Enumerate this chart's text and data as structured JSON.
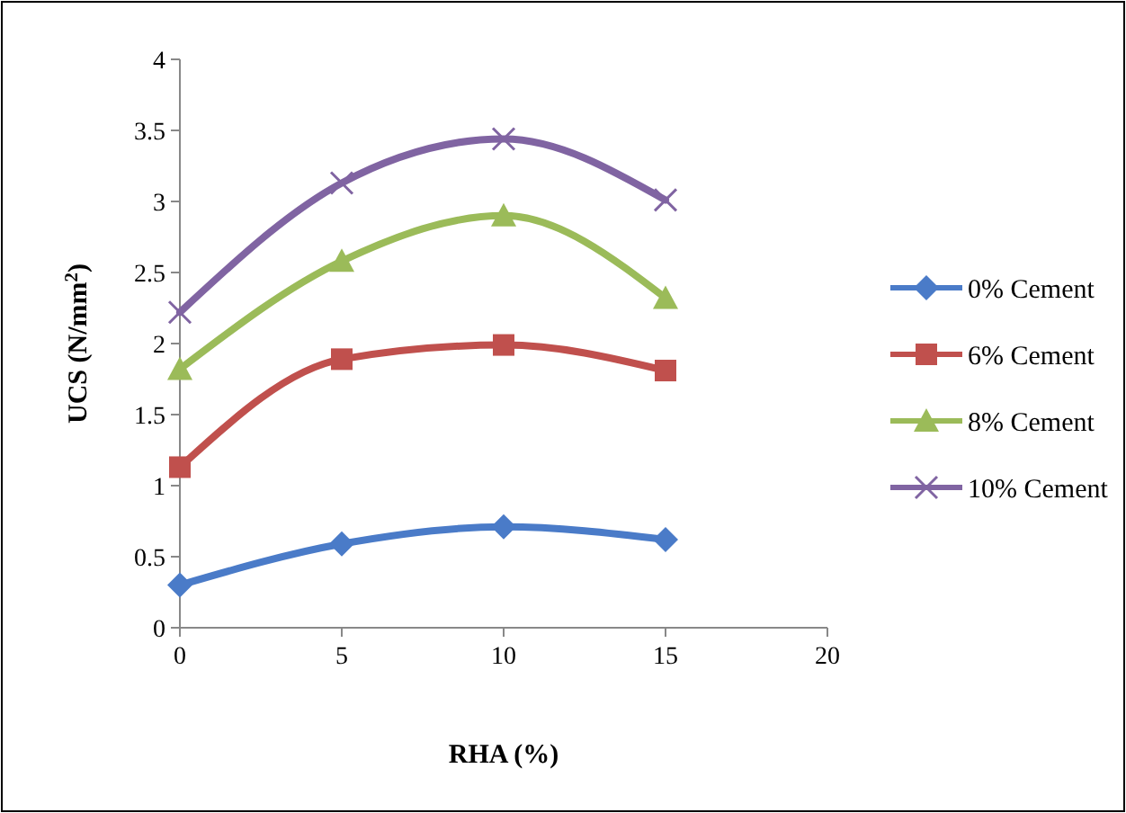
{
  "chart_data": {
    "type": "line",
    "xlabel": "RHA (%)",
    "ylabel": "UCS (N/mm$^{2}$)",
    "x": [
      0,
      5,
      10,
      15
    ],
    "xlim": [
      0,
      20
    ],
    "xticks": [
      0,
      5,
      10,
      15,
      20
    ],
    "ylim": [
      0,
      4
    ],
    "yticks": [
      0,
      0.5,
      1,
      1.5,
      2,
      2.5,
      3,
      3.5,
      4
    ],
    "grid": false,
    "legend": "right",
    "line_style": "solid",
    "series": [
      {
        "name": "0% Cement",
        "color": "#4a7bc8",
        "marker": "diamond",
        "values": [
          0.3,
          0.59,
          0.71,
          0.62
        ]
      },
      {
        "name": "6% Cement",
        "color": "#c0504d",
        "marker": "square",
        "values": [
          1.13,
          1.89,
          1.99,
          1.81
        ]
      },
      {
        "name": "8% Cement",
        "color": "#9bbb59",
        "marker": "triangle",
        "values": [
          1.82,
          2.58,
          2.9,
          2.32
        ]
      },
      {
        "name": "10% Cement",
        "color": "#8064a2",
        "marker": "cross",
        "values": [
          2.22,
          3.13,
          3.44,
          3.01
        ]
      }
    ]
  }
}
